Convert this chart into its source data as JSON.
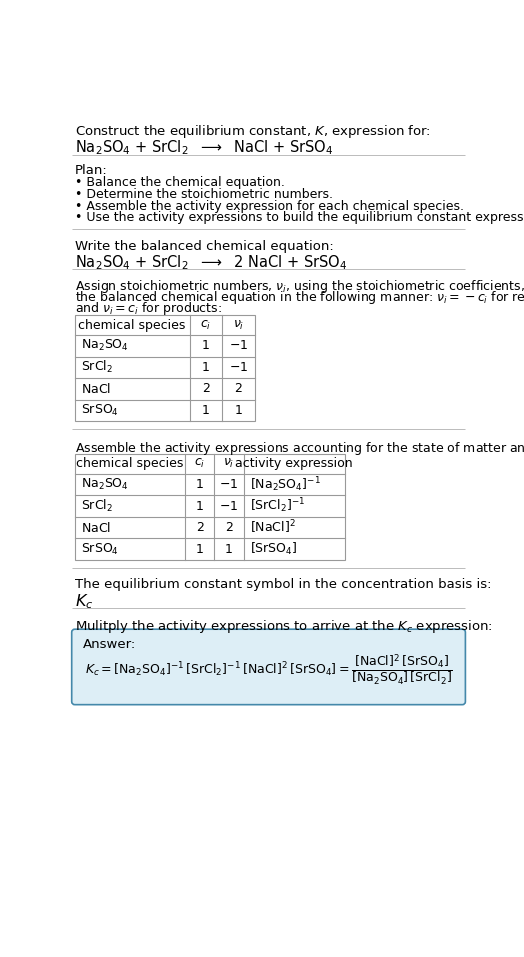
{
  "title_line1": "Construct the equilibrium constant, $K$, expression for:",
  "title_line2": "$\\mathrm{Na_2SO_4}$ + $\\mathrm{SrCl_2}$  $\\longrightarrow$  $\\mathrm{NaCl}$ + $\\mathrm{SrSO_4}$",
  "plan_header": "Plan:",
  "plan_bullets": [
    "• Balance the chemical equation.",
    "• Determine the stoichiometric numbers.",
    "• Assemble the activity expression for each chemical species.",
    "• Use the activity expressions to build the equilibrium constant expression."
  ],
  "balanced_header": "Write the balanced chemical equation:",
  "balanced_eq": "$\\mathrm{Na_2SO_4}$ + $\\mathrm{SrCl_2}$  $\\longrightarrow$  2 $\\mathrm{NaCl}$ + $\\mathrm{SrSO_4}$",
  "stoich_intro_lines": [
    "Assign stoichiometric numbers, $\\nu_i$, using the stoichiometric coefficients, $c_i$, from",
    "the balanced chemical equation in the following manner: $\\nu_i = -c_i$ for reactants",
    "and $\\nu_i = c_i$ for products:"
  ],
  "table1_headers": [
    "chemical species",
    "$c_i$",
    "$\\nu_i$"
  ],
  "table1_rows": [
    [
      "$\\mathrm{Na_2SO_4}$",
      "1",
      "$-1$"
    ],
    [
      "$\\mathrm{SrCl_2}$",
      "1",
      "$-1$"
    ],
    [
      "$\\mathrm{NaCl}$",
      "2",
      "2"
    ],
    [
      "$\\mathrm{SrSO_4}$",
      "1",
      "1"
    ]
  ],
  "activity_intro": "Assemble the activity expressions accounting for the state of matter and $\\nu_i$:",
  "table2_headers": [
    "chemical species",
    "$c_i$",
    "$\\nu_i$",
    "activity expression"
  ],
  "table2_rows": [
    [
      "$\\mathrm{Na_2SO_4}$",
      "1",
      "$-1$",
      "$[\\mathrm{Na_2SO_4}]^{-1}$"
    ],
    [
      "$\\mathrm{SrCl_2}$",
      "1",
      "$-1$",
      "$[\\mathrm{SrCl_2}]^{-1}$"
    ],
    [
      "$\\mathrm{NaCl}$",
      "2",
      "2",
      "$[\\mathrm{NaCl}]^2$"
    ],
    [
      "$\\mathrm{SrSO_4}$",
      "1",
      "1",
      "$[\\mathrm{SrSO_4}]$"
    ]
  ],
  "kc_symbol_text": "The equilibrium constant symbol in the concentration basis is:",
  "kc_symbol": "$K_c$",
  "multiply_text": "Mulitply the activity expressions to arrive at the $K_c$ expression:",
  "answer_label": "Answer:",
  "answer_eq": "$K_c = [\\mathrm{Na_2SO_4}]^{-1}\\,[\\mathrm{SrCl_2}]^{-1}\\,[\\mathrm{NaCl}]^2\\,[\\mathrm{SrSO_4}] = \\dfrac{[\\mathrm{NaCl}]^2\\,[\\mathrm{SrSO_4}]}{[\\mathrm{Na_2SO_4}]\\,[\\mathrm{SrCl_2}]}$",
  "bg_color": "#ffffff",
  "text_color": "#000000",
  "table_border_color": "#999999",
  "answer_box_fill": "#ddeef6",
  "answer_box_border": "#4488aa",
  "separator_color": "#bbbbbb"
}
